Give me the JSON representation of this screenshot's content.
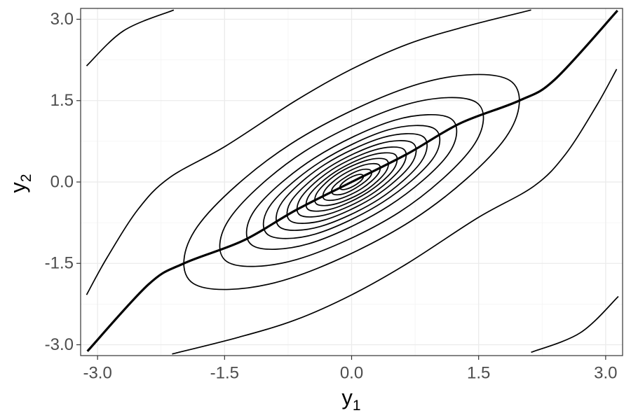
{
  "chart_data": {
    "type": "contour",
    "xlabel": {
      "base": "y",
      "sub": "1"
    },
    "ylabel": {
      "base": "y",
      "sub": "2"
    },
    "xlim": [
      -3.2,
      3.2
    ],
    "ylim": [
      -3.2,
      3.2
    ],
    "xticks": [
      {
        "value": -3,
        "label": "-3.0"
      },
      -1.5,
      {
        "value": 0,
        "label": "0.0"
      },
      1.5,
      {
        "value": 3,
        "label": "3.0"
      }
    ],
    "yticks": [
      {
        "value": -3,
        "label": "-3.0"
      },
      -1.5,
      {
        "value": 0,
        "label": "0.0"
      },
      1.5,
      {
        "value": 3,
        "label": "3.0"
      }
    ],
    "xminor": [
      -2.25,
      -0.75,
      0.75,
      2.25
    ],
    "yminor": [
      -2.25,
      -0.75,
      0.75,
      2.25
    ],
    "grid": true,
    "color": "#000000",
    "curve": {
      "x": [
        -3.12,
        -2.4,
        -1.98,
        -1.28,
        -0.66,
        0,
        0.66,
        1.28,
        1.98,
        2.4,
        3.14
      ],
      "y": [
        -3.12,
        -1.89,
        -1.5,
        -1.08,
        -0.52,
        0,
        0.52,
        1.08,
        1.5,
        1.89,
        3.16
      ]
    },
    "contours": [
      {
        "closed": false,
        "x": [
          -3.13,
          -2.69,
          -2.1
        ],
        "y": [
          2.14,
          2.79,
          3.17
        ]
      },
      {
        "closed": false,
        "x": [
          2.12,
          2.7,
          3.15
        ],
        "y": [
          -3.14,
          -2.78,
          -2.11
        ]
      },
      {
        "closed": false,
        "x": [
          -3.13,
          -2.89,
          -2.52,
          -2.15,
          -1.49,
          -0.66,
          0,
          0.66,
          1.33,
          2.12
        ],
        "y": [
          -2.08,
          -1.4,
          -0.5,
          0.08,
          0.66,
          1.5,
          2.08,
          2.54,
          2.86,
          3.17
        ]
      },
      {
        "closed": false,
        "x": [
          -2.12,
          -1.33,
          -0.66,
          0,
          0.66,
          1.49,
          2.15,
          2.52,
          2.89,
          3.13
        ],
        "y": [
          -3.17,
          -2.86,
          -2.54,
          -2.08,
          -1.5,
          -0.66,
          -0.08,
          0.5,
          1.4,
          2.08
        ]
      },
      {
        "closed": true,
        "x": [
          1.87,
          0.82,
          -0.71,
          -1.82,
          -1.87,
          -0.82,
          0.71,
          1.82
        ],
        "y": [
          1.87,
          1.82,
          0.71,
          -0.82,
          -1.87,
          -1.82,
          -0.71,
          0.82
        ]
      },
      {
        "closed": true,
        "x": [
          1.47,
          0.65,
          -0.56,
          -1.43,
          -1.47,
          -0.65,
          0.56,
          1.43
        ],
        "y": [
          1.47,
          1.43,
          0.56,
          -0.65,
          -1.47,
          -1.43,
          -0.56,
          0.65
        ]
      },
      {
        "closed": true,
        "x": [
          1.17,
          0.51,
          -0.44,
          -1.14,
          -1.17,
          -0.51,
          0.44,
          1.14
        ],
        "y": [
          1.17,
          1.14,
          0.44,
          -0.51,
          -1.17,
          -1.14,
          -0.44,
          0.51
        ]
      },
      {
        "closed": true,
        "x": [
          0.98,
          0.43,
          -0.37,
          -0.96,
          -0.98,
          -0.43,
          0.37,
          0.96
        ],
        "y": [
          0.98,
          0.96,
          0.37,
          -0.43,
          -0.98,
          -0.96,
          -0.37,
          0.43
        ]
      },
      {
        "closed": true,
        "x": [
          0.84,
          0.37,
          -0.32,
          -0.82,
          -0.84,
          -0.37,
          0.32,
          0.82
        ],
        "y": [
          0.84,
          0.82,
          0.32,
          -0.37,
          -0.84,
          -0.82,
          -0.32,
          0.37
        ]
      },
      {
        "closed": true,
        "x": [
          0.72,
          0.32,
          -0.27,
          -0.7,
          -0.72,
          -0.32,
          0.27,
          0.7
        ],
        "y": [
          0.72,
          0.7,
          0.27,
          -0.32,
          -0.72,
          -0.7,
          -0.27,
          0.32
        ]
      },
      {
        "closed": true,
        "x": [
          0.61,
          0.27,
          -0.23,
          -0.59,
          -0.61,
          -0.27,
          0.23,
          0.59
        ],
        "y": [
          0.61,
          0.59,
          0.23,
          -0.27,
          -0.61,
          -0.59,
          -0.23,
          0.27
        ]
      },
      {
        "closed": true,
        "x": [
          0.51,
          0.22,
          -0.19,
          -0.49,
          -0.51,
          -0.22,
          0.19,
          0.49
        ],
        "y": [
          0.51,
          0.49,
          0.19,
          -0.22,
          -0.51,
          -0.49,
          -0.19,
          0.22
        ]
      },
      {
        "closed": true,
        "x": [
          0.41,
          0.18,
          -0.16,
          -0.4,
          -0.41,
          -0.18,
          0.16,
          0.4
        ],
        "y": [
          0.41,
          0.4,
          0.16,
          -0.18,
          -0.41,
          -0.4,
          -0.16,
          0.18
        ]
      },
      {
        "closed": true,
        "x": [
          0.32,
          0.14,
          -0.12,
          -0.31,
          -0.32,
          -0.14,
          0.12,
          0.31
        ],
        "y": [
          0.32,
          0.31,
          0.12,
          -0.14,
          -0.32,
          -0.31,
          -0.12,
          0.14
        ]
      },
      {
        "closed": true,
        "x": [
          0.22,
          0.1,
          -0.08,
          -0.22,
          -0.22,
          -0.1,
          0.08,
          0.22
        ],
        "y": [
          0.22,
          0.22,
          0.08,
          -0.1,
          -0.22,
          -0.22,
          -0.08,
          0.1
        ]
      },
      {
        "closed": true,
        "x": [
          0.13,
          0.06,
          -0.05,
          -0.13,
          -0.13,
          -0.06,
          0.05,
          0.13
        ],
        "y": [
          0.13,
          0.13,
          0.05,
          -0.06,
          -0.13,
          -0.13,
          -0.05,
          0.06
        ]
      }
    ]
  }
}
